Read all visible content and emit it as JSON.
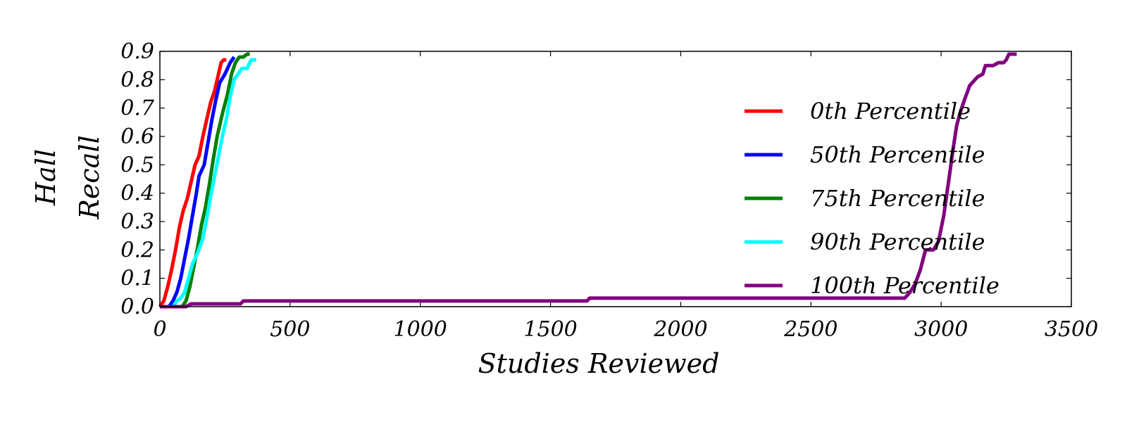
{
  "chart_data": {
    "type": "line",
    "title": "",
    "xlabel": "Studies Reviewed",
    "ylabel_lines": [
      "Hall",
      "Recall"
    ],
    "xlim": [
      0,
      3500
    ],
    "ylim": [
      0,
      0.9
    ],
    "xticks": [
      0,
      500,
      1000,
      1500,
      2000,
      2500,
      3000,
      3500
    ],
    "yticks": [
      0.0,
      0.1,
      0.2,
      0.3,
      0.4,
      0.5,
      0.6,
      0.7,
      0.8,
      0.9
    ],
    "xtick_labels": [
      "0",
      "500",
      "1000",
      "1500",
      "2000",
      "2500",
      "3000",
      "3500"
    ],
    "ytick_labels": [
      "0.0",
      "0.1",
      "0.2",
      "0.3",
      "0.4",
      "0.5",
      "0.6",
      "0.7",
      "0.8",
      "0.9"
    ],
    "grid": false,
    "legend_position": "right",
    "series": [
      {
        "name": "0th Percentile",
        "color": "#ff0000",
        "points": [
          [
            0,
            0
          ],
          [
            15,
            0.02
          ],
          [
            30,
            0.07
          ],
          [
            45,
            0.13
          ],
          [
            60,
            0.2
          ],
          [
            75,
            0.28
          ],
          [
            90,
            0.34
          ],
          [
            105,
            0.38
          ],
          [
            120,
            0.44
          ],
          [
            135,
            0.5
          ],
          [
            150,
            0.53
          ],
          [
            165,
            0.6
          ],
          [
            180,
            0.66
          ],
          [
            195,
            0.72
          ],
          [
            210,
            0.76
          ],
          [
            225,
            0.82
          ],
          [
            235,
            0.86
          ],
          [
            245,
            0.87
          ],
          [
            255,
            0.87
          ]
        ]
      },
      {
        "name": "50th Percentile",
        "color": "#0000ff",
        "points": [
          [
            35,
            0
          ],
          [
            50,
            0.02
          ],
          [
            65,
            0.05
          ],
          [
            80,
            0.1
          ],
          [
            95,
            0.17
          ],
          [
            110,
            0.24
          ],
          [
            125,
            0.32
          ],
          [
            140,
            0.4
          ],
          [
            150,
            0.46
          ],
          [
            170,
            0.5
          ],
          [
            185,
            0.58
          ],
          [
            200,
            0.66
          ],
          [
            215,
            0.73
          ],
          [
            230,
            0.79
          ],
          [
            250,
            0.82
          ],
          [
            270,
            0.86
          ],
          [
            285,
            0.88
          ]
        ]
      },
      {
        "name": "75th Percentile",
        "color": "#008000",
        "points": [
          [
            85,
            0
          ],
          [
            100,
            0.02
          ],
          [
            115,
            0.07
          ],
          [
            130,
            0.14
          ],
          [
            145,
            0.21
          ],
          [
            160,
            0.29
          ],
          [
            175,
            0.35
          ],
          [
            190,
            0.43
          ],
          [
            205,
            0.52
          ],
          [
            220,
            0.6
          ],
          [
            240,
            0.68
          ],
          [
            260,
            0.75
          ],
          [
            275,
            0.82
          ],
          [
            290,
            0.86
          ],
          [
            305,
            0.88
          ],
          [
            320,
            0.88
          ],
          [
            335,
            0.89
          ],
          [
            345,
            0.89
          ]
        ]
      },
      {
        "name": "90th Percentile",
        "color": "#00ffff",
        "points": [
          [
            50,
            0
          ],
          [
            65,
            0.02
          ],
          [
            80,
            0.03
          ],
          [
            95,
            0.05
          ],
          [
            110,
            0.1
          ],
          [
            125,
            0.15
          ],
          [
            145,
            0.19
          ],
          [
            165,
            0.24
          ],
          [
            180,
            0.31
          ],
          [
            195,
            0.39
          ],
          [
            210,
            0.46
          ],
          [
            225,
            0.53
          ],
          [
            240,
            0.6
          ],
          [
            255,
            0.66
          ],
          [
            270,
            0.74
          ],
          [
            285,
            0.8
          ],
          [
            300,
            0.82
          ],
          [
            315,
            0.84
          ],
          [
            335,
            0.84
          ],
          [
            350,
            0.87
          ],
          [
            370,
            0.87
          ]
        ]
      },
      {
        "name": "100th Percentile",
        "color": "#800080",
        "points": [
          [
            0,
            0
          ],
          [
            100,
            0
          ],
          [
            120,
            0.01
          ],
          [
            310,
            0.01
          ],
          [
            320,
            0.02
          ],
          [
            1640,
            0.02
          ],
          [
            1650,
            0.03
          ],
          [
            2860,
            0.03
          ],
          [
            2880,
            0.05
          ],
          [
            2900,
            0.08
          ],
          [
            2920,
            0.13
          ],
          [
            2940,
            0.2
          ],
          [
            2970,
            0.2
          ],
          [
            2990,
            0.23
          ],
          [
            3010,
            0.32
          ],
          [
            3030,
            0.45
          ],
          [
            3045,
            0.55
          ],
          [
            3060,
            0.64
          ],
          [
            3075,
            0.69
          ],
          [
            3090,
            0.73
          ],
          [
            3110,
            0.78
          ],
          [
            3140,
            0.81
          ],
          [
            3160,
            0.82
          ],
          [
            3170,
            0.85
          ],
          [
            3200,
            0.85
          ],
          [
            3220,
            0.86
          ],
          [
            3240,
            0.86
          ],
          [
            3250,
            0.87
          ],
          [
            3260,
            0.89
          ],
          [
            3290,
            0.89
          ]
        ]
      }
    ]
  }
}
